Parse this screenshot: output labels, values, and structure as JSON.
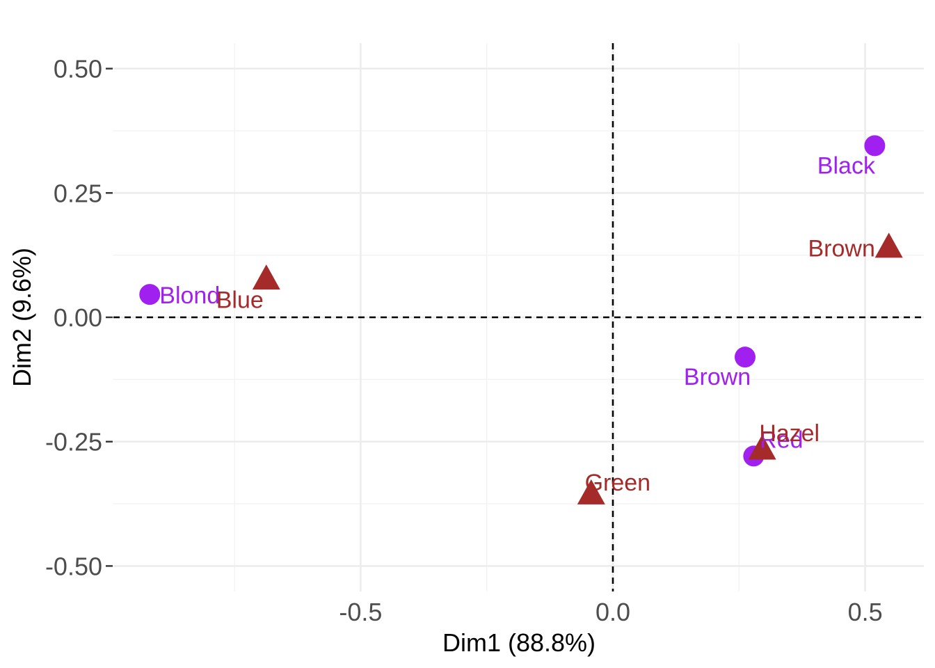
{
  "chart_data": {
    "type": "scatter",
    "title": "",
    "xlabel": "Dim1 (88.8%)",
    "ylabel": "Dim2 (9.6%)",
    "xlim": [
      -0.95,
      0.62
    ],
    "ylim": [
      -0.545,
      0.55
    ],
    "x_ticks": [
      {
        "value": -0.5,
        "label": "-0.5"
      },
      {
        "value": 0.0,
        "label": "0.0"
      },
      {
        "value": 0.5,
        "label": "0.5"
      }
    ],
    "y_ticks": [
      {
        "value": 0.5,
        "label": "0.50"
      },
      {
        "value": 0.25,
        "label": "0.25"
      },
      {
        "value": 0.0,
        "label": "0.00"
      },
      {
        "value": -0.25,
        "label": "-0.25"
      },
      {
        "value": -0.5,
        "label": "-0.50"
      }
    ],
    "grid": true,
    "reference_lines": {
      "x": 0,
      "y": 0,
      "style": "dashed"
    },
    "legend": "none",
    "series": [
      {
        "marker": "circle",
        "color": "#a020f0",
        "points": [
          {
            "label": "Black",
            "x": 0.519,
            "y": 0.345
          },
          {
            "label": "Blond",
            "x": -0.918,
            "y": 0.046
          },
          {
            "label": "Brown",
            "x": 0.262,
            "y": -0.08
          },
          {
            "label": "Red",
            "x": 0.279,
            "y": -0.279
          }
        ]
      },
      {
        "marker": "triangle",
        "color": "#a52a2a",
        "points": [
          {
            "label": "Brown",
            "x": 0.547,
            "y": 0.139
          },
          {
            "label": "Blue",
            "x": -0.687,
            "y": 0.075
          },
          {
            "label": "Hazel",
            "x": 0.296,
            "y": -0.267
          },
          {
            "label": "Green",
            "x": -0.043,
            "y": -0.357
          }
        ]
      }
    ]
  }
}
